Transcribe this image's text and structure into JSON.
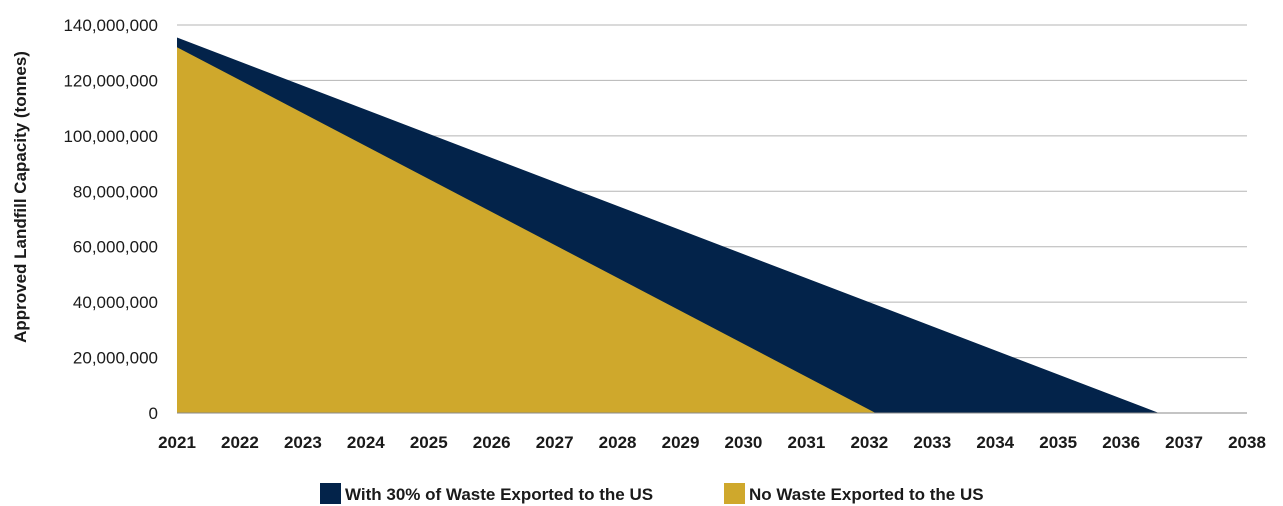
{
  "chart_data": {
    "type": "area",
    "ylabel": "Approved Landfill Capacity (tonnes)",
    "xlabel": "",
    "ylim": [
      0,
      140000000
    ],
    "xlim": [
      2021,
      2038
    ],
    "grid": true,
    "legend_position": "bottom",
    "x_ticks": [
      "2021",
      "2022",
      "2023",
      "2024",
      "2025",
      "2026",
      "2027",
      "2028",
      "2029",
      "2030",
      "2031",
      "2032",
      "2033",
      "2034",
      "2035",
      "2036",
      "2037",
      "2038"
    ],
    "y_ticks": [
      "0",
      "20,000,000",
      "40,000,000",
      "60,000,000",
      "80,000,000",
      "100,000,000",
      "120,000,000",
      "140,000,000"
    ],
    "series": [
      {
        "name": "With 30% of Waste Exported to the US",
        "color": "#03234a",
        "x": [
          2021,
          2036.6
        ],
        "y": [
          135500000,
          0
        ]
      },
      {
        "name": "No Waste Exported to the US",
        "color": "#cfa82c",
        "x": [
          2021,
          2032.1
        ],
        "y": [
          132000000,
          0
        ]
      }
    ]
  }
}
